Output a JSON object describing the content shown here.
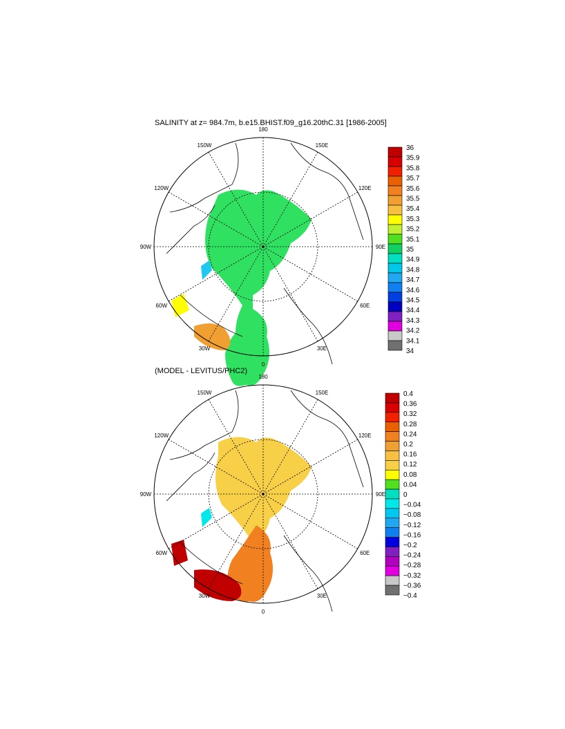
{
  "panels": [
    {
      "title": "SALINITY at z= 984.7m, b.e15.BHIST.f09_g16.20thC.31 [1986-2005]",
      "lon_labels": [
        "180",
        "150E",
        "120E",
        "90E",
        "60E",
        "30E",
        "0",
        "30W",
        "60W",
        "90W",
        "120W",
        "150W"
      ],
      "colorbar": {
        "ticks": [
          "36",
          "35.9",
          "35.8",
          "35.7",
          "35.6",
          "35.5",
          "35.4",
          "35.3",
          "35.2",
          "35.1",
          "35",
          "34.9",
          "34.8",
          "34.7",
          "34.6",
          "34.5",
          "34.4",
          "34.3",
          "34.2",
          "34.1",
          "34"
        ],
        "colors": [
          "#c00000",
          "#d80000",
          "#f02000",
          "#e86000",
          "#f08020",
          "#f0a030",
          "#f8c040",
          "#ffff00",
          "#c0f030",
          "#50e020",
          "#10d060",
          "#00e0c0",
          "#00c8e8",
          "#20a8f0",
          "#1080f0",
          "#0040e0",
          "#0000c0",
          "#8020c0",
          "#e000e0",
          "#c8c8c8",
          "#707070"
        ]
      }
    },
    {
      "title": "(MODEL - LEVITUS/PHC2)",
      "lon_labels": [
        "180",
        "150E",
        "120E",
        "90E",
        "60E",
        "30E",
        "0",
        "30W",
        "60W",
        "90W",
        "120W",
        "150W"
      ],
      "colorbar": {
        "ticks": [
          "0.4",
          "0.36",
          "0.32",
          "0.28",
          "0.24",
          "0.2",
          "0.16",
          "0.12",
          "0.08",
          "0.04",
          "0",
          "−0.04",
          "−0.08",
          "−0.12",
          "−0.16",
          "−0.2",
          "−0.24",
          "−0.28",
          "−0.32",
          "−0.36",
          "−0.4"
        ],
        "colors": [
          "#c00000",
          "#d80000",
          "#f02000",
          "#e86000",
          "#f08020",
          "#f0a030",
          "#f8c040",
          "#f8d048",
          "#ffff00",
          "#50e020",
          "#00e0c0",
          "#00e8e8",
          "#00c8f0",
          "#20a8f0",
          "#1080f0",
          "#0000e0",
          "#8020c0",
          "#b000c0",
          "#e000e0",
          "#c8c8c8",
          "#707070"
        ]
      }
    }
  ]
}
